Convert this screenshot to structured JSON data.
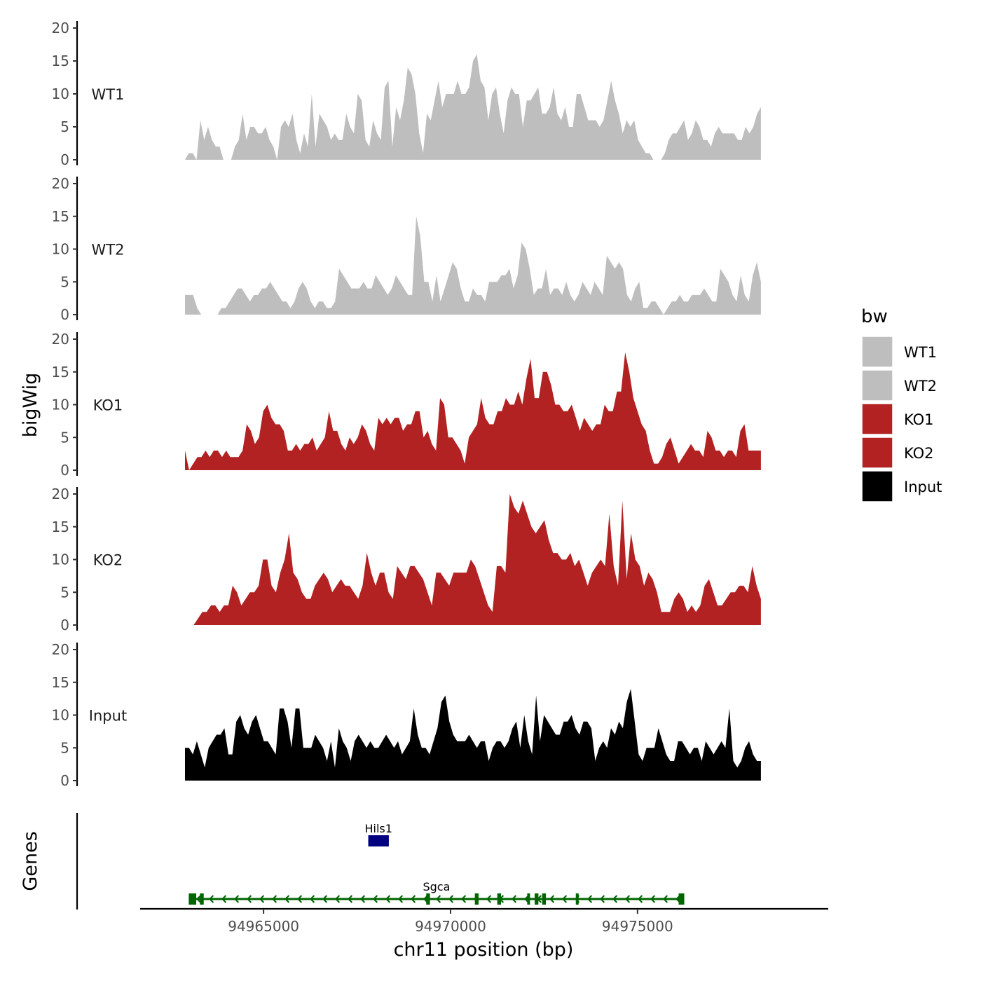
{
  "chart_data": {
    "type": "area",
    "title": "",
    "ylabel": "bigWig",
    "xlabel": "chr11 position (bp)",
    "genes_axis_label": "Genes",
    "xlim": [
      94961700,
      94980100
    ],
    "data_xrange": [
      94962900,
      94978300
    ],
    "ylim": [
      0,
      20
    ],
    "yticks": [
      0,
      5,
      10,
      15,
      20
    ],
    "xticks": [
      94965000,
      94970000,
      94975000
    ],
    "xtick_labels": [
      "94965000",
      "94970000",
      "94975000"
    ],
    "grid": false,
    "legend": {
      "title": "bw",
      "position": "right",
      "entries": [
        {
          "label": "WT1",
          "color": "#bebebe"
        },
        {
          "label": "WT2",
          "color": "#bebebe"
        },
        {
          "label": "KO1",
          "color": "#b22222"
        },
        {
          "label": "KO2",
          "color": "#b22222"
        },
        {
          "label": "Input",
          "color": "#000000"
        }
      ]
    },
    "series": [
      {
        "name": "WT1",
        "color": "#bebebe",
        "values": [
          0,
          1,
          1,
          0,
          6,
          3,
          5,
          3,
          2,
          2,
          0,
          0,
          0,
          2,
          3,
          7,
          3,
          5,
          5,
          4,
          4,
          5,
          3,
          2,
          0,
          5,
          6,
          5,
          7,
          3,
          1,
          4,
          2,
          10,
          2,
          7,
          6,
          5,
          3,
          4,
          3,
          3,
          7,
          5,
          4,
          10,
          9,
          3,
          2,
          6,
          4,
          3,
          11,
          12,
          2,
          8,
          6,
          9,
          14,
          13,
          10,
          4,
          1,
          7,
          6,
          9,
          12,
          8,
          10,
          10,
          10,
          12,
          10,
          10,
          11,
          15,
          16,
          12,
          11,
          6,
          10,
          11,
          7,
          4,
          9,
          11,
          10,
          10,
          5,
          9,
          9,
          10,
          11,
          7,
          7,
          8,
          11,
          7,
          6,
          8,
          5,
          5,
          10,
          10,
          8,
          6,
          6,
          6,
          5,
          6,
          9,
          12,
          9,
          7,
          4,
          6,
          5,
          6,
          3,
          2,
          1,
          1,
          0,
          0,
          0,
          1,
          3,
          4,
          4,
          5,
          6,
          3,
          4,
          6,
          5,
          3,
          3,
          2,
          4,
          5,
          4,
          4,
          4,
          4,
          3,
          3,
          5,
          4,
          5,
          7,
          8
        ]
      },
      {
        "name": "WT2",
        "color": "#bebebe",
        "values": [
          3,
          3,
          3,
          1,
          0,
          0,
          0,
          0,
          0,
          1,
          1,
          2,
          3,
          4,
          4,
          3,
          2,
          3,
          3,
          4,
          4,
          5,
          4,
          3,
          2,
          2,
          1,
          2,
          4,
          5,
          4,
          2,
          1,
          2,
          2,
          1,
          1,
          2,
          7,
          6,
          5,
          4,
          4,
          4,
          5,
          4,
          4,
          6,
          5,
          4,
          3,
          4,
          6,
          5,
          4,
          3,
          3,
          15,
          12,
          5,
          5,
          2,
          6,
          2,
          4,
          6,
          8,
          7,
          4,
          2,
          2,
          4,
          3,
          3,
          2,
          5,
          5,
          5,
          6,
          6,
          7,
          4,
          6,
          11,
          10,
          7,
          3,
          4,
          4,
          7,
          3,
          4,
          4,
          3,
          5,
          3,
          2,
          3,
          5,
          4,
          3,
          5,
          4,
          3,
          9,
          8,
          7,
          8,
          7,
          3,
          2,
          4,
          5,
          1,
          1,
          2,
          2,
          1,
          0,
          1,
          2,
          2,
          3,
          2,
          2,
          3,
          3,
          3,
          4,
          3,
          2,
          2,
          7,
          6,
          5,
          3,
          2,
          6,
          3,
          2,
          6,
          8,
          5
        ]
      },
      {
        "name": "KO1",
        "color": "#b22222",
        "values": [
          3,
          0,
          1,
          2,
          2,
          3,
          2,
          3,
          3,
          2,
          3,
          2,
          2,
          2,
          3,
          7,
          6,
          4,
          5,
          9,
          10,
          8,
          7,
          7,
          6,
          3,
          3,
          4,
          3,
          4,
          4,
          5,
          3,
          4,
          5,
          9,
          6,
          6,
          4,
          3,
          5,
          4,
          5,
          7,
          6,
          4,
          3,
          8,
          7,
          8,
          7,
          8,
          8,
          6,
          7,
          7,
          9,
          9,
          5,
          6,
          4,
          3,
          11,
          10,
          5,
          5,
          4,
          3,
          1,
          5,
          6,
          7,
          11,
          8,
          7,
          7,
          9,
          9,
          11,
          10,
          10,
          12,
          10,
          14,
          17,
          11,
          11,
          15,
          15,
          13,
          10,
          10,
          9,
          9,
          10,
          8,
          6,
          8,
          7,
          6,
          7,
          7,
          10,
          9,
          9,
          12,
          12,
          18,
          15,
          11,
          9,
          7,
          6,
          3,
          1,
          1,
          2,
          4,
          5,
          3,
          1,
          2,
          3,
          4,
          3,
          3,
          2,
          6,
          5,
          3,
          3,
          2,
          3,
          3,
          2,
          6,
          7,
          3,
          3,
          3,
          3
        ]
      },
      {
        "name": "KO2",
        "color": "#b22222",
        "values": [
          0,
          0,
          0,
          1,
          2,
          2,
          3,
          3,
          2,
          3,
          3,
          6,
          5,
          3,
          4,
          5,
          5,
          6,
          10,
          10,
          6,
          5,
          8,
          10,
          14,
          8,
          7,
          5,
          4,
          4,
          6,
          7,
          8,
          7,
          5,
          6,
          7,
          6,
          6,
          5,
          4,
          6,
          11,
          8,
          6,
          8,
          8,
          5,
          4,
          9,
          8,
          7,
          9,
          9,
          8,
          7,
          5,
          3,
          8,
          8,
          7,
          6,
          8,
          8,
          8,
          8,
          10,
          9,
          7,
          5,
          3,
          2,
          9,
          9,
          8,
          20,
          18,
          17,
          19,
          17,
          15,
          14,
          15,
          16,
          13,
          11,
          11,
          10,
          10,
          11,
          9,
          10,
          8,
          6,
          8,
          9,
          10,
          9,
          17,
          9,
          6,
          19,
          7,
          14,
          10,
          9,
          6,
          8,
          7,
          5,
          2,
          2,
          2,
          4,
          5,
          4,
          2,
          3,
          2,
          3,
          6,
          7,
          5,
          3,
          3,
          4,
          5,
          5,
          6,
          6,
          5,
          9,
          6,
          4
        ]
      },
      {
        "name": "Input",
        "color": "#000000",
        "values": [
          5,
          5,
          4,
          6,
          4,
          2,
          5,
          6,
          7,
          7,
          8,
          4,
          4,
          9,
          10,
          8,
          7,
          9,
          10,
          8,
          6,
          6,
          5,
          4,
          11,
          11,
          9,
          5,
          11,
          11,
          5,
          5,
          5,
          7,
          6,
          5,
          3,
          6,
          2,
          8,
          6,
          5,
          3,
          6,
          7,
          6,
          5,
          6,
          5,
          5,
          6,
          7,
          6,
          5,
          6,
          4,
          5,
          6,
          11,
          7,
          5,
          5,
          4,
          6,
          8,
          12,
          13,
          9,
          7,
          6,
          6,
          6,
          7,
          6,
          5,
          6,
          6,
          3,
          5,
          6,
          6,
          5,
          6,
          8,
          9,
          5,
          10,
          6,
          4,
          13,
          6,
          10,
          9,
          8,
          7,
          7,
          9,
          9,
          10,
          8,
          7,
          9,
          9,
          8,
          3,
          5,
          6,
          5,
          8,
          7,
          9,
          8,
          12,
          14,
          9,
          4,
          3,
          5,
          5,
          5,
          8,
          6,
          4,
          3,
          3,
          6,
          6,
          5,
          4,
          5,
          5,
          3,
          6,
          5,
          4,
          5,
          6,
          5,
          11,
          3,
          2,
          3,
          5,
          6,
          4,
          3,
          3
        ]
      }
    ],
    "genes": [
      {
        "name": "Hils1",
        "color": "#000080",
        "start": 94967800,
        "end": 94968350,
        "strand": "+",
        "exons": [
          [
            94967800,
            94968350
          ]
        ]
      },
      {
        "name": "Sgca",
        "color": "#006400",
        "start": 94963000,
        "end": 94976250,
        "strand": "-",
        "exons": [
          [
            94963000,
            94963200
          ],
          [
            94963300,
            94963400
          ],
          [
            94969350,
            94969450
          ],
          [
            94970650,
            94970750
          ],
          [
            94971250,
            94971350
          ],
          [
            94972050,
            94972100
          ],
          [
            94972250,
            94972350
          ],
          [
            94972450,
            94972550
          ],
          [
            94973350,
            94973400
          ],
          [
            94976100,
            94976250
          ]
        ]
      }
    ]
  }
}
